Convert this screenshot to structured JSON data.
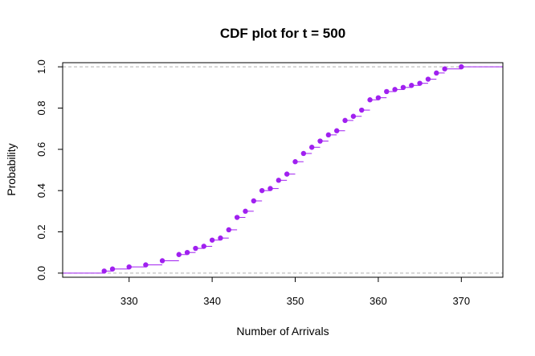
{
  "chart_data": {
    "type": "line",
    "style": "step-ecdf",
    "title": "CDF plot for t = 500",
    "xlabel": "Number of Arrivals",
    "ylabel": "Probability",
    "xlim": [
      322,
      375
    ],
    "ylim": [
      -0.02,
      1.02
    ],
    "x_ticks": [
      330,
      340,
      350,
      360,
      370
    ],
    "y_ticks": [
      0.0,
      0.2,
      0.4,
      0.6,
      0.8,
      1.0
    ],
    "x_tick_labels": [
      "330",
      "340",
      "350",
      "360",
      "370"
    ],
    "y_tick_labels": [
      "0.0",
      "0.2",
      "0.4",
      "0.6",
      "0.8",
      "1.0"
    ],
    "reference_lines": [
      0,
      1
    ],
    "grid": false,
    "color": "#a020f0",
    "reference_line_color": "#b0b0b0",
    "points": [
      {
        "x": 327,
        "y": 0.01
      },
      {
        "x": 328,
        "y": 0.02
      },
      {
        "x": 330,
        "y": 0.03
      },
      {
        "x": 332,
        "y": 0.04
      },
      {
        "x": 334,
        "y": 0.06
      },
      {
        "x": 336,
        "y": 0.09
      },
      {
        "x": 337,
        "y": 0.1
      },
      {
        "x": 338,
        "y": 0.12
      },
      {
        "x": 339,
        "y": 0.13
      },
      {
        "x": 340,
        "y": 0.16
      },
      {
        "x": 341,
        "y": 0.17
      },
      {
        "x": 342,
        "y": 0.21
      },
      {
        "x": 343,
        "y": 0.27
      },
      {
        "x": 344,
        "y": 0.3
      },
      {
        "x": 345,
        "y": 0.35
      },
      {
        "x": 346,
        "y": 0.4
      },
      {
        "x": 347,
        "y": 0.41
      },
      {
        "x": 348,
        "y": 0.45
      },
      {
        "x": 349,
        "y": 0.48
      },
      {
        "x": 350,
        "y": 0.54
      },
      {
        "x": 351,
        "y": 0.58
      },
      {
        "x": 352,
        "y": 0.61
      },
      {
        "x": 353,
        "y": 0.64
      },
      {
        "x": 354,
        "y": 0.67
      },
      {
        "x": 355,
        "y": 0.69
      },
      {
        "x": 356,
        "y": 0.74
      },
      {
        "x": 357,
        "y": 0.76
      },
      {
        "x": 358,
        "y": 0.79
      },
      {
        "x": 359,
        "y": 0.84
      },
      {
        "x": 360,
        "y": 0.85
      },
      {
        "x": 361,
        "y": 0.88
      },
      {
        "x": 362,
        "y": 0.89
      },
      {
        "x": 363,
        "y": 0.9
      },
      {
        "x": 364,
        "y": 0.91
      },
      {
        "x": 365,
        "y": 0.92
      },
      {
        "x": 366,
        "y": 0.94
      },
      {
        "x": 367,
        "y": 0.97
      },
      {
        "x": 368,
        "y": 0.99
      },
      {
        "x": 370,
        "y": 1.0
      }
    ]
  }
}
